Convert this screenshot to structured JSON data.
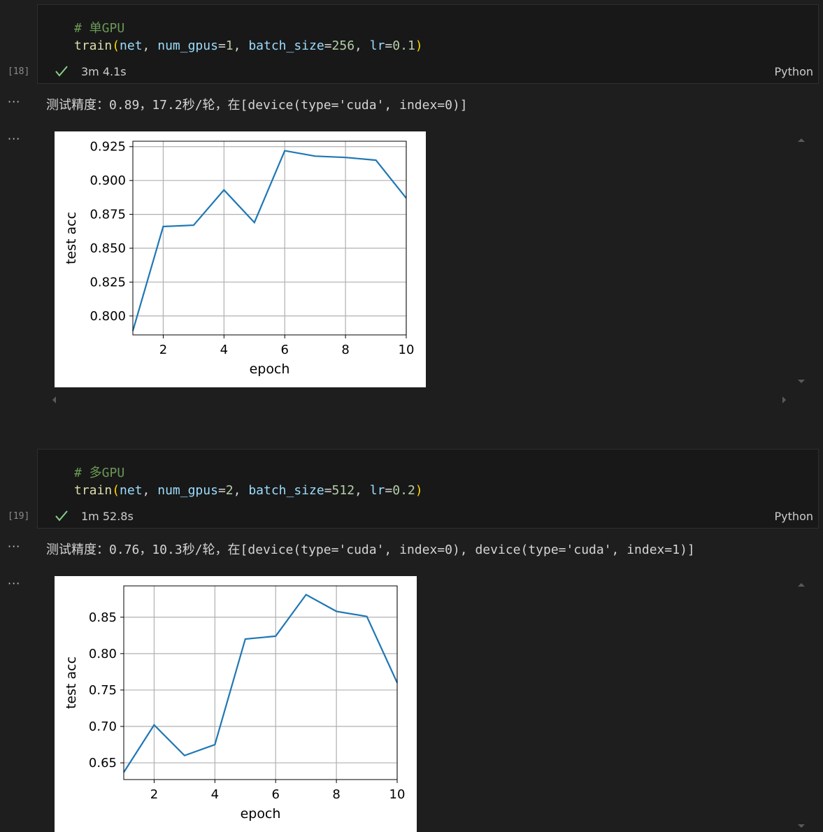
{
  "cells": [
    {
      "execution_count": "[18]",
      "comment": "# 单GPU",
      "code": {
        "fn": "train",
        "arg1": "net",
        "p1_name": "num_gpus",
        "p1_val": "1",
        "p2_name": "batch_size",
        "p2_val": "256",
        "p3_name": "lr",
        "p3_val": "0.1"
      },
      "status_icon": "check-icon",
      "exec_time": "3m 4.1s",
      "language": "Python",
      "output_text": "测试精度：0.89，17.2秒/轮，在[device(type='cuda', index=0)]"
    },
    {
      "execution_count": "[19]",
      "comment": "# 多GPU",
      "code": {
        "fn": "train",
        "arg1": "net",
        "p1_name": "num_gpus",
        "p1_val": "2",
        "p2_name": "batch_size",
        "p2_val": "512",
        "p3_name": "lr",
        "p3_val": "0.2"
      },
      "status_icon": "check-icon",
      "exec_time": "1m 52.8s",
      "language": "Python",
      "output_text": "测试精度：0.76，10.3秒/轮，在[device(type='cuda', index=0), device(type='cuda', index=1)]"
    }
  ],
  "chart_data": [
    {
      "type": "line",
      "xlabel": "epoch",
      "ylabel": "test acc",
      "x": [
        1,
        2,
        3,
        4,
        5,
        6,
        7,
        8,
        9,
        10
      ],
      "series": [
        {
          "values": [
            0.789,
            0.866,
            0.867,
            0.893,
            0.869,
            0.922,
            0.918,
            0.917,
            0.915,
            0.887
          ]
        }
      ],
      "xlim": [
        1,
        10
      ],
      "ylim": [
        0.786,
        0.929
      ],
      "xticks": [
        2,
        4,
        6,
        8,
        10
      ],
      "yticks": [
        0.8,
        0.825,
        0.85,
        0.875,
        0.9,
        0.925
      ],
      "ytick_labels": [
        "0.800",
        "0.825",
        "0.850",
        "0.875",
        "0.900",
        "0.925"
      ],
      "grid": true,
      "line_color": "#1f77b4"
    },
    {
      "type": "line",
      "xlabel": "epoch",
      "ylabel": "test acc",
      "x": [
        1,
        2,
        3,
        4,
        5,
        6,
        7,
        8,
        9,
        10
      ],
      "series": [
        {
          "values": [
            0.637,
            0.702,
            0.66,
            0.675,
            0.82,
            0.824,
            0.881,
            0.858,
            0.851,
            0.76
          ]
        }
      ],
      "xlim": [
        1,
        10
      ],
      "ylim": [
        0.627,
        0.893
      ],
      "xticks": [
        2,
        4,
        6,
        8,
        10
      ],
      "yticks": [
        0.65,
        0.7,
        0.75,
        0.8,
        0.85
      ],
      "ytick_labels": [
        "0.65",
        "0.70",
        "0.75",
        "0.80",
        "0.85"
      ],
      "grid": true,
      "line_color": "#1f77b4"
    }
  ]
}
